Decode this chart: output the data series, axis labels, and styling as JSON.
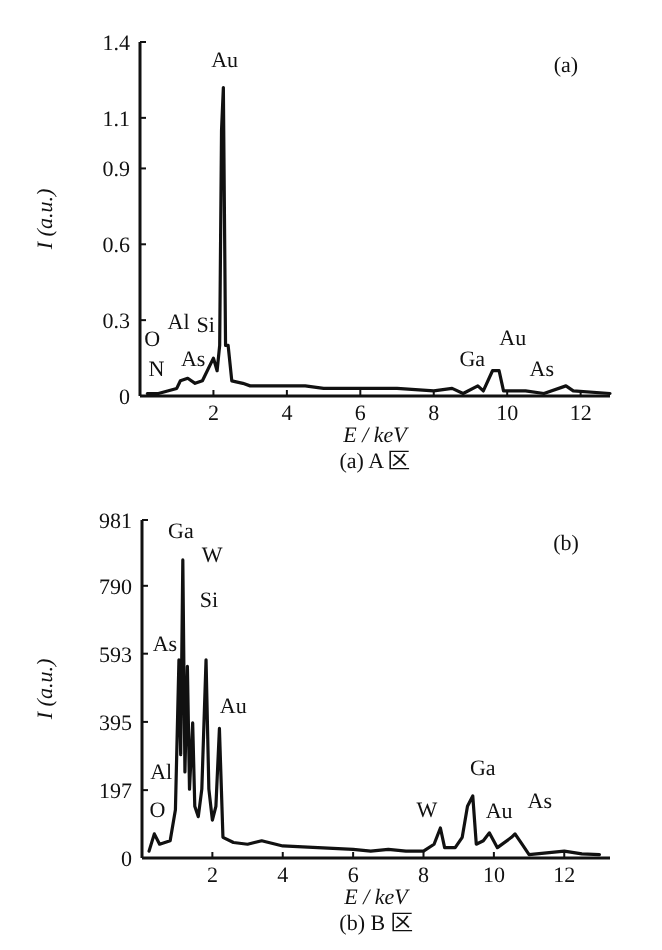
{
  "chart_data": [
    {
      "type": "line",
      "xlabel": "E / keV",
      "ylabel": "I (a.u.)",
      "xlim": [
        0,
        12.8
      ],
      "ylim": [
        0,
        1.4
      ],
      "xticks": [
        2,
        4,
        6,
        8,
        10,
        12
      ],
      "yticks": [
        0,
        0.3,
        0.6,
        0.9,
        1.1,
        1.4
      ],
      "grid": false,
      "marker": "none",
      "line_style": "solid",
      "series": [
        {
          "color": "#111111",
          "x": [
            0.2,
            0.5,
            1.0,
            1.1,
            1.3,
            1.5,
            1.7,
            2.0,
            2.1,
            2.17,
            2.22,
            2.27,
            2.33,
            2.4,
            2.5,
            2.8,
            3.0,
            4.0,
            4.5,
            5.0,
            6.0,
            7.0,
            8.0,
            8.5,
            8.8,
            9.2,
            9.35,
            9.6,
            9.78,
            9.9,
            10.5,
            11.0,
            11.6,
            11.8,
            12.8
          ],
          "values": [
            0.01,
            0.01,
            0.03,
            0.06,
            0.07,
            0.05,
            0.06,
            0.15,
            0.1,
            0.2,
            1.05,
            1.22,
            0.2,
            0.2,
            0.06,
            0.05,
            0.04,
            0.04,
            0.04,
            0.03,
            0.03,
            0.03,
            0.02,
            0.03,
            0.01,
            0.04,
            0.02,
            0.1,
            0.1,
            0.02,
            0.02,
            0.01,
            0.04,
            0.02,
            0.01
          ]
        }
      ],
      "annotations": [
        "(a)",
        "(a) A 区",
        "Au",
        "O",
        "Al",
        "N",
        "As",
        "Si",
        "Ga",
        "Au",
        "As"
      ]
    },
    {
      "type": "line",
      "xlabel": "E / keV",
      "ylabel": "I (a.u.)",
      "xlim": [
        0,
        13.3
      ],
      "ylim": [
        0,
        981
      ],
      "xticks": [
        2,
        4,
        6,
        8,
        10,
        12
      ],
      "yticks": [
        0,
        197,
        395,
        593,
        790,
        981
      ],
      "grid": false,
      "marker": "none",
      "line_style": "solid",
      "series": [
        {
          "color": "#111111",
          "x": [
            0.2,
            0.35,
            0.5,
            0.8,
            0.95,
            1.05,
            1.1,
            1.16,
            1.22,
            1.29,
            1.35,
            1.44,
            1.5,
            1.6,
            1.7,
            1.82,
            1.9,
            2.0,
            2.1,
            2.2,
            2.3,
            2.6,
            3.0,
            3.4,
            4.0,
            5.0,
            6.0,
            6.5,
            7.0,
            7.5,
            8.0,
            8.3,
            8.48,
            8.6,
            8.9,
            9.1,
            9.25,
            9.4,
            9.5,
            9.7,
            9.87,
            10.1,
            10.5,
            10.6,
            10.8,
            11.0,
            11.5,
            12.0,
            12.5,
            13.0
          ],
          "values": [
            20,
            70,
            40,
            50,
            140,
            575,
            300,
            865,
            250,
            556,
            200,
            392,
            150,
            120,
            200,
            575,
            200,
            110,
            150,
            376,
            60,
            45,
            40,
            50,
            35,
            30,
            25,
            20,
            25,
            20,
            20,
            40,
            87,
            30,
            30,
            60,
            150,
            180,
            40,
            50,
            73,
            30,
            60,
            70,
            40,
            10,
            15,
            20,
            12,
            10
          ]
        }
      ],
      "annotations": [
        "(b)",
        "(b) B 区",
        "Ga",
        "W",
        "Si",
        "As",
        "Au",
        "Al",
        "O",
        "Ga",
        "W",
        "Au",
        "As"
      ]
    }
  ]
}
